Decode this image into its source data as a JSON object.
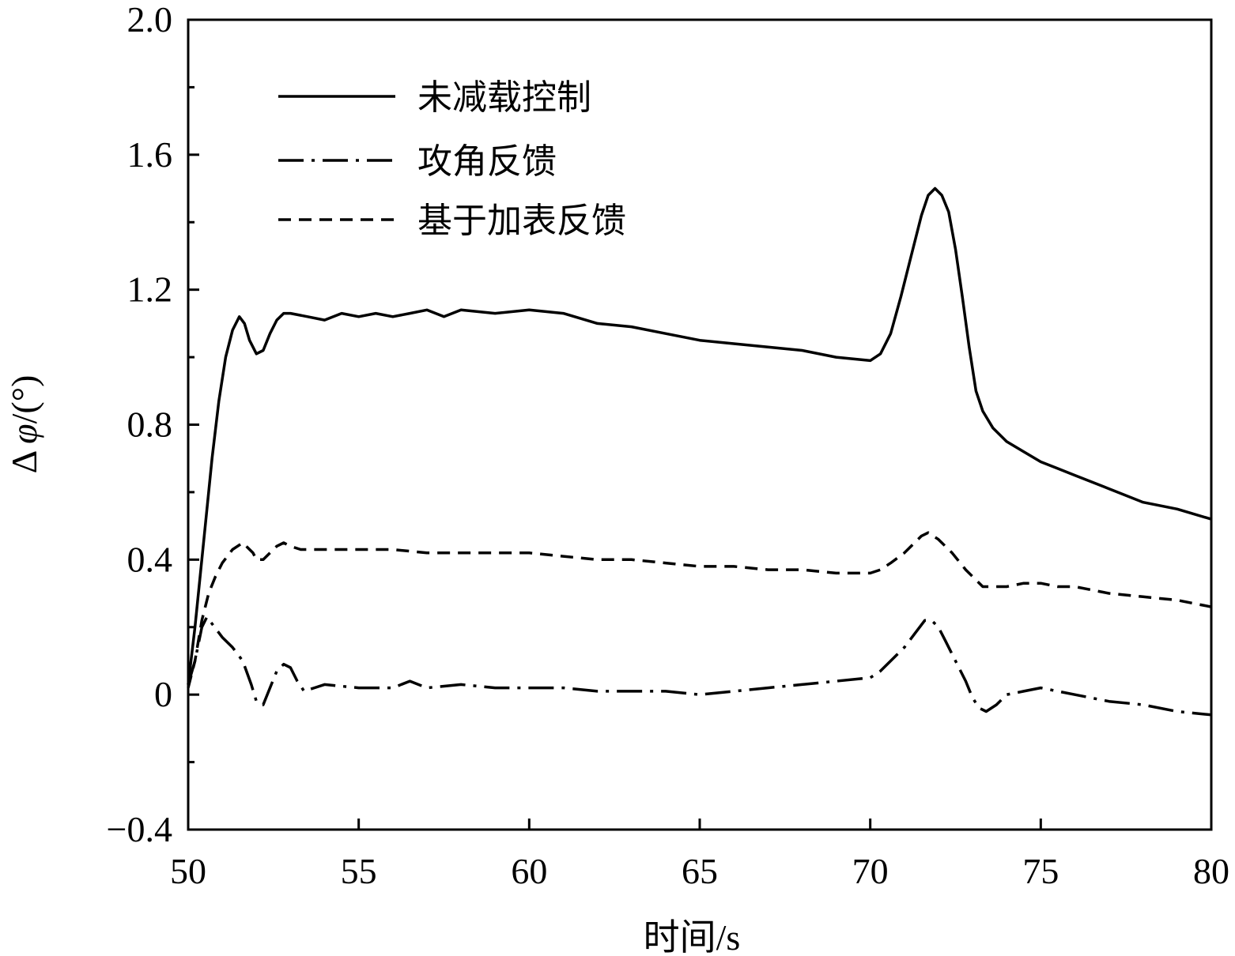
{
  "chart_data": {
    "type": "line",
    "xlabel": "时间/s",
    "ylabel_prefix": "Δ",
    "ylabel_symbol": "φ",
    "ylabel_suffix": "/(°)",
    "xlim": [
      50,
      80
    ],
    "ylim": [
      -0.4,
      2.0
    ],
    "x_ticks": [
      50,
      55,
      60,
      65,
      70,
      75,
      80
    ],
    "x_tick_labels": [
      "50",
      "55",
      "60",
      "65",
      "70",
      "75",
      "80"
    ],
    "y_ticks": [
      -0.4,
      0,
      0.4,
      0.8,
      1.2,
      1.6,
      2.0
    ],
    "y_tick_labels": [
      "−0.4",
      "0",
      "0.4",
      "0.8",
      "1.2",
      "1.6",
      "2.0"
    ],
    "y_minor_ticks": [
      -0.2,
      0.2,
      0.6,
      1.0,
      1.4,
      1.8
    ],
    "legend_position": "top-left",
    "grid": false,
    "series": [
      {
        "name": "未减载控制",
        "style": "solid",
        "x": [
          50.0,
          50.2,
          50.35,
          50.5,
          50.7,
          50.9,
          51.1,
          51.3,
          51.5,
          51.65,
          51.8,
          52.0,
          52.2,
          52.4,
          52.6,
          52.8,
          53.0,
          53.5,
          54.0,
          54.5,
          55.0,
          55.5,
          56.0,
          56.5,
          57.0,
          57.5,
          58.0,
          59.0,
          60.0,
          61.0,
          62.0,
          63.0,
          64.0,
          65.0,
          66.0,
          67.0,
          68.0,
          69.0,
          70.0,
          70.3,
          70.6,
          70.9,
          71.2,
          71.5,
          71.7,
          71.9,
          72.1,
          72.3,
          72.5,
          72.7,
          72.9,
          73.1,
          73.3,
          73.6,
          74.0,
          74.5,
          75.0,
          75.5,
          76.0,
          77.0,
          78.0,
          79.0,
          80.0
        ],
        "y": [
          0.03,
          0.2,
          0.35,
          0.5,
          0.7,
          0.87,
          1.0,
          1.08,
          1.12,
          1.1,
          1.05,
          1.01,
          1.02,
          1.07,
          1.11,
          1.13,
          1.13,
          1.12,
          1.11,
          1.13,
          1.12,
          1.13,
          1.12,
          1.13,
          1.14,
          1.12,
          1.14,
          1.13,
          1.14,
          1.13,
          1.1,
          1.09,
          1.07,
          1.05,
          1.04,
          1.03,
          1.02,
          1.0,
          0.99,
          1.01,
          1.07,
          1.18,
          1.3,
          1.42,
          1.48,
          1.5,
          1.48,
          1.43,
          1.32,
          1.18,
          1.03,
          0.9,
          0.84,
          0.79,
          0.75,
          0.72,
          0.69,
          0.67,
          0.65,
          0.61,
          0.57,
          0.55,
          0.52
        ]
      },
      {
        "name": "攻角反馈",
        "style": "dashdot",
        "x": [
          50.0,
          50.2,
          50.4,
          50.55,
          50.7,
          51.0,
          51.3,
          51.6,
          51.85,
          52.0,
          52.2,
          52.4,
          52.6,
          52.8,
          53.0,
          53.2,
          53.4,
          53.7,
          54.0,
          55.0,
          56.0,
          56.5,
          57.0,
          58.0,
          59.0,
          60.0,
          61.0,
          62.0,
          63.0,
          64.0,
          65.0,
          66.0,
          67.0,
          68.0,
          69.0,
          70.0,
          70.3,
          70.6,
          71.0,
          71.3,
          71.6,
          71.8,
          72.0,
          72.2,
          72.5,
          72.8,
          73.0,
          73.2,
          73.4,
          73.7,
          74.0,
          74.5,
          75.0,
          75.5,
          76.0,
          77.0,
          78.0,
          79.0,
          80.0
        ],
        "y": [
          0.03,
          0.1,
          0.2,
          0.23,
          0.21,
          0.17,
          0.14,
          0.1,
          0.03,
          -0.02,
          -0.03,
          0.02,
          0.07,
          0.09,
          0.08,
          0.04,
          0.01,
          0.02,
          0.03,
          0.02,
          0.02,
          0.04,
          0.02,
          0.03,
          0.02,
          0.02,
          0.02,
          0.01,
          0.01,
          0.01,
          0.0,
          0.01,
          0.02,
          0.03,
          0.04,
          0.05,
          0.07,
          0.1,
          0.14,
          0.18,
          0.22,
          0.22,
          0.2,
          0.16,
          0.1,
          0.04,
          -0.01,
          -0.04,
          -0.05,
          -0.03,
          0.0,
          0.01,
          0.02,
          0.01,
          0.0,
          -0.02,
          -0.03,
          -0.05,
          -0.06
        ]
      },
      {
        "name": "基于加表反馈",
        "style": "dashed",
        "x": [
          50.0,
          50.2,
          50.4,
          50.6,
          50.8,
          51.0,
          51.3,
          51.6,
          51.9,
          52.0,
          52.2,
          52.4,
          52.6,
          52.8,
          53.0,
          53.3,
          53.6,
          54.0,
          55.0,
          56.0,
          57.0,
          58.0,
          59.0,
          60.0,
          61.0,
          62.0,
          63.0,
          64.0,
          65.0,
          66.0,
          67.0,
          68.0,
          69.0,
          70.0,
          70.3,
          70.6,
          71.0,
          71.3,
          71.5,
          71.7,
          72.0,
          72.4,
          72.8,
          73.1,
          73.3,
          73.7,
          74.0,
          74.5,
          75.0,
          75.5,
          76.0,
          77.0,
          78.0,
          79.0,
          80.0
        ],
        "y": [
          0.02,
          0.1,
          0.22,
          0.3,
          0.35,
          0.39,
          0.43,
          0.45,
          0.42,
          0.4,
          0.4,
          0.42,
          0.44,
          0.45,
          0.44,
          0.43,
          0.43,
          0.43,
          0.43,
          0.43,
          0.42,
          0.42,
          0.42,
          0.42,
          0.41,
          0.4,
          0.4,
          0.39,
          0.38,
          0.38,
          0.37,
          0.37,
          0.36,
          0.36,
          0.37,
          0.39,
          0.42,
          0.45,
          0.47,
          0.48,
          0.46,
          0.42,
          0.37,
          0.34,
          0.32,
          0.32,
          0.32,
          0.33,
          0.33,
          0.32,
          0.32,
          0.3,
          0.29,
          0.28,
          0.26
        ]
      }
    ]
  }
}
